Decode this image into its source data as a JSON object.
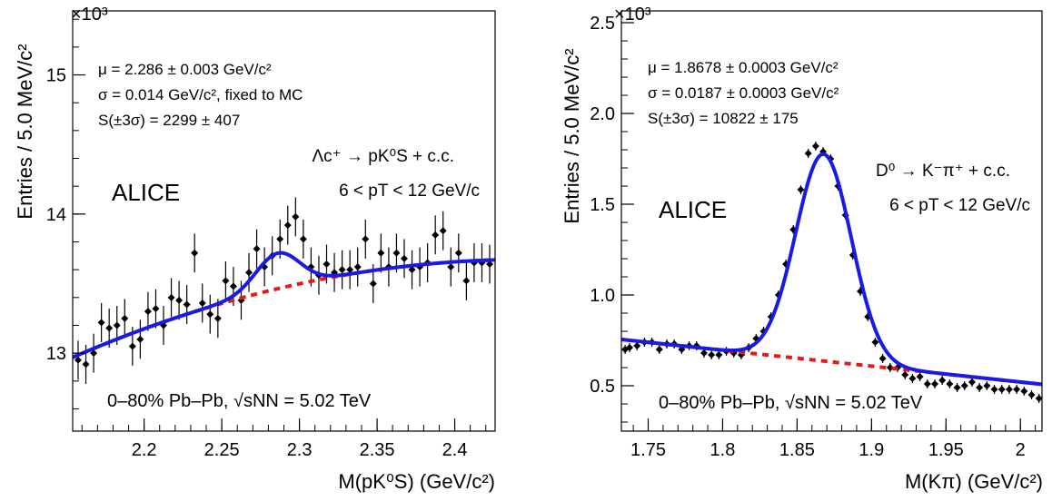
{
  "chart_data": [
    {
      "type": "scatter",
      "panel": "left",
      "multiplier": "×10³",
      "ylabel": "Entries / 5.0 MeV/c²",
      "xlabel": "M(pK⁰S) (GeV/c²)",
      "xlim": [
        2.154,
        2.426
      ],
      "ylim": [
        12.44,
        15.46
      ],
      "xticks": [
        2.2,
        2.25,
        2.3,
        2.35,
        2.4
      ],
      "xtick_labels": [
        "2.2",
        "2.25",
        "2.3",
        "2.35",
        "2.4"
      ],
      "yticks": [
        13,
        14,
        15
      ],
      "ytick_labels": [
        "13",
        "14",
        "15"
      ],
      "fit_lines": [
        "μ = 2.286 ± 0.003 GeV/c²",
        "σ = 0.014 GeV/c², fixed to MC",
        "S(±3σ) = 2299 ± 407"
      ],
      "decay": "Λc⁺ → pK⁰S + c.c.",
      "pt_range": "6 < pT < 12 GeV/c",
      "experiment": "ALICE",
      "system": "0–80% Pb–Pb, √sNN = 5.02 TeV",
      "fit": {
        "mu": 2.286,
        "sigma": 0.014,
        "bkg_at_min": 12.97,
        "bkg_at_max": 13.67,
        "bkg_curvature": 0.55,
        "amplitude": 0.255
      },
      "x": [
        2.1575,
        2.1625,
        2.1675,
        2.1725,
        2.1775,
        2.1825,
        2.1875,
        2.1925,
        2.1975,
        2.2025,
        2.2075,
        2.2125,
        2.2175,
        2.2225,
        2.2275,
        2.2325,
        2.2375,
        2.2425,
        2.2475,
        2.2525,
        2.2575,
        2.2625,
        2.2675,
        2.2725,
        2.2775,
        2.2825,
        2.2875,
        2.2925,
        2.2975,
        2.3025,
        2.3075,
        2.3125,
        2.3175,
        2.3225,
        2.3275,
        2.3325,
        2.3375,
        2.3425,
        2.3475,
        2.3525,
        2.3575,
        2.3625,
        2.3675,
        2.3725,
        2.3775,
        2.3825,
        2.3875,
        2.3925,
        2.3975,
        2.4025,
        2.4075,
        2.4125,
        2.4175,
        2.4225
      ],
      "y": [
        12.95,
        12.92,
        13.0,
        13.22,
        13.18,
        13.2,
        13.25,
        13.05,
        13.1,
        13.3,
        13.32,
        13.2,
        13.4,
        13.38,
        13.35,
        13.72,
        13.36,
        13.28,
        13.25,
        13.52,
        13.48,
        13.38,
        13.58,
        13.75,
        13.62,
        13.7,
        13.82,
        13.92,
        13.98,
        13.82,
        13.62,
        13.56,
        13.64,
        13.58,
        13.6,
        13.6,
        13.62,
        13.82,
        13.5,
        13.72,
        13.62,
        13.72,
        13.68,
        13.6,
        13.62,
        13.65,
        13.85,
        13.88,
        13.62,
        13.72,
        13.52,
        13.65,
        13.65,
        13.64
      ],
      "yerr": 0.14
    },
    {
      "type": "scatter",
      "panel": "right",
      "multiplier": "×10³",
      "ylabel": "Entries / 5.0 MeV/c²",
      "xlabel": "M(Kπ) (GeV/c²)",
      "xlim": [
        1.732,
        2.0145
      ],
      "ylim": [
        0.25,
        2.565
      ],
      "xticks": [
        1.75,
        1.8,
        1.85,
        1.9,
        1.95,
        2.0
      ],
      "xtick_labels": [
        "1.75",
        "1.8",
        "1.85",
        "1.9",
        "1.95",
        "2"
      ],
      "yticks": [
        0.5,
        1.0,
        1.5,
        2.0,
        2.5
      ],
      "ytick_labels": [
        "0.5",
        "1.0",
        "1.5",
        "2.0",
        "2.5"
      ],
      "fit_lines": [
        "μ = 1.8678 ± 0.0003 GeV/c²",
        "σ = 0.0187 ± 0.0003 GeV/c²",
        "S(±3σ) = 10822 ± 175"
      ],
      "decay": "D⁰ → K⁻π⁺ + c.c.",
      "pt_range": "6 < pT < 12 GeV/c",
      "experiment": "ALICE",
      "system": "0–80% Pb–Pb, √sNN = 5.02 TeV",
      "fit": {
        "mu": 1.8678,
        "sigma": 0.0187,
        "bkg_slope": -0.0875,
        "bkg_ref_x": 1.732,
        "bkg_ref_y": 0.755,
        "amplitude": 1.14
      },
      "x": [
        1.7345,
        1.7375,
        1.7425,
        1.7475,
        1.7525,
        1.7575,
        1.7625,
        1.7675,
        1.7725,
        1.7775,
        1.7825,
        1.7875,
        1.7925,
        1.7975,
        1.8025,
        1.8075,
        1.8125,
        1.8175,
        1.8225,
        1.8275,
        1.8325,
        1.8375,
        1.8425,
        1.8475,
        1.8525,
        1.8575,
        1.8625,
        1.8675,
        1.8725,
        1.8775,
        1.8825,
        1.8875,
        1.8925,
        1.8975,
        1.9025,
        1.9075,
        1.9125,
        1.9175,
        1.9225,
        1.9275,
        1.9325,
        1.9375,
        1.9425,
        1.9475,
        1.9525,
        1.9575,
        1.9625,
        1.9675,
        1.9725,
        1.9775,
        1.9825,
        1.9875,
        1.9925,
        1.9975,
        2.0025,
        2.0075,
        2.0125
      ],
      "y": [
        0.7,
        0.71,
        0.72,
        0.74,
        0.74,
        0.7,
        0.73,
        0.73,
        0.7,
        0.72,
        0.72,
        0.68,
        0.67,
        0.67,
        0.69,
        0.68,
        0.67,
        0.71,
        0.76,
        0.8,
        0.88,
        1.0,
        1.17,
        1.36,
        1.58,
        1.78,
        1.82,
        1.79,
        1.75,
        1.6,
        1.44,
        1.22,
        1.02,
        0.88,
        0.74,
        0.65,
        0.6,
        0.6,
        0.56,
        0.54,
        0.55,
        0.51,
        0.51,
        0.53,
        0.51,
        0.49,
        0.5,
        0.52,
        0.49,
        0.5,
        0.48,
        0.48,
        0.48,
        0.48,
        0.47,
        0.45,
        0.43
      ],
      "yerr": 0.025
    }
  ]
}
